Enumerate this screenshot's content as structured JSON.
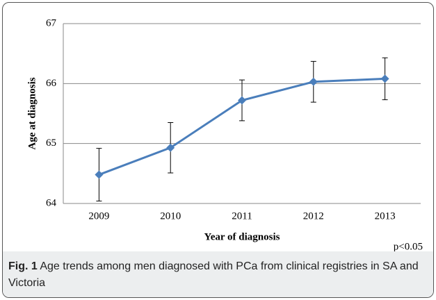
{
  "chart_data": {
    "type": "line",
    "x_label": "Year of diagnosis",
    "y_label": "Age at diagnosis",
    "annotation": "p<0.05",
    "categories": [
      "2009",
      "2010",
      "2011",
      "2012",
      "2013"
    ],
    "values": [
      64.48,
      64.93,
      65.72,
      66.03,
      66.08
    ],
    "errors": [
      0.44,
      0.42,
      0.34,
      0.34,
      0.35
    ],
    "color": "#4a7ebb",
    "ylim": [
      64,
      67
    ],
    "yticks": [
      64,
      65,
      66,
      67
    ],
    "grid": true
  },
  "caption": {
    "label": "Fig. 1",
    "text": "Age trends among men diagnosed with PCa from clinical registries in SA and Victoria"
  }
}
